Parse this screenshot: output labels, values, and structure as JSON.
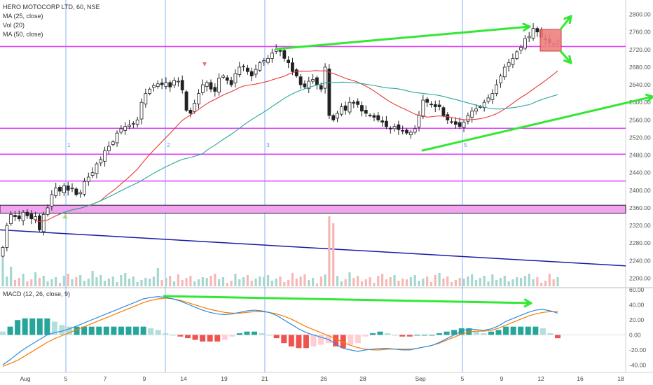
{
  "header": {
    "symbol_line": "HERO MOTOCORP LTD, 60, NSE",
    "studies": [
      "MA (25, close)",
      "Vol (20)",
      "MA (50, close)"
    ],
    "macd_label": "MACD (12, 26, close, 9)"
  },
  "colors": {
    "up": "#26a69a",
    "down": "#ef5350",
    "ma25": "#e53935",
    "ma50": "#26a69a",
    "support": "#e040fb",
    "support_zone": "#f2a3f2",
    "trend_blue": "#1a1aa6",
    "arrow_green": "#33e833",
    "target_box": "#f08080",
    "macd_line": "#2f8bdc",
    "signal_line": "#f57c00",
    "wave_line": "#8ab4f8"
  },
  "chart_data": [
    {
      "type": "candlestick",
      "panel": "price",
      "y_ticks": [
        2200,
        2240,
        2280,
        2320,
        2360,
        2400,
        2440,
        2480,
        2520,
        2560,
        2600,
        2640,
        2680,
        2720,
        2760,
        2800
      ],
      "y_tick_labels": [
        "2200.00",
        "2240.00",
        "2280.00",
        "2320.00",
        "2360.00",
        "2400.00",
        "2440.00",
        "2480.00",
        "2520.00",
        "2560.00",
        "2600.00",
        "2640.00",
        "2680.00",
        "2720.00",
        "2760.00",
        "2800.00"
      ],
      "ylim": [
        2180,
        2820
      ],
      "x_ticks": [
        "Aug",
        "5",
        "7",
        "9",
        "14",
        "19",
        "21",
        "26",
        "28",
        "Sep",
        "5",
        "9",
        "12",
        "16",
        "18"
      ],
      "wave_labels": [
        "1",
        "2",
        "3",
        "5"
      ],
      "horizontal_levels": [
        2727,
        2541,
        2482,
        2421
      ],
      "support_zone": [
        2348,
        2366
      ],
      "trendline": [
        2310,
        2228
      ],
      "bar_values_approx": [
        2270,
        2320,
        2345,
        2340,
        2335,
        2350,
        2342,
        2335,
        2340,
        2310,
        2345,
        2360,
        2390,
        2405,
        2398,
        2410,
        2400,
        2405,
        2390,
        2395,
        2420,
        2430,
        2440,
        2460,
        2470,
        2490,
        2500,
        2510,
        2530,
        2540,
        2545,
        2548,
        2552,
        2560,
        2600,
        2620,
        2630,
        2638,
        2642,
        2640,
        2645,
        2635,
        2650,
        2648,
        2628,
        2582,
        2575,
        2598,
        2620,
        2640,
        2645,
        2630,
        2625,
        2655,
        2660,
        2650,
        2640,
        2665,
        2680,
        2682,
        2670,
        2660,
        2675,
        2690,
        2695,
        2700,
        2712,
        2720,
        2716,
        2700,
        2690,
        2670,
        2660,
        2640,
        2635,
        2648,
        2652,
        2640,
        2630,
        2680,
        2570,
        2560,
        2575,
        2590,
        2582,
        2600,
        2598,
        2595,
        2580,
        2575,
        2570,
        2566,
        2560,
        2555,
        2545,
        2540,
        2545,
        2538,
        2535,
        2530,
        2532,
        2540,
        2570,
        2605,
        2600,
        2595,
        2590,
        2590,
        2570,
        2560,
        2556,
        2550,
        2545,
        2555,
        2570,
        2580,
        2585,
        2590,
        2600,
        2610,
        2620,
        2640,
        2660,
        2680,
        2690,
        2700,
        2715,
        2725,
        2745,
        2750,
        2768,
        2760,
        2748,
        2742,
        2735,
        2733,
        2740
      ]
    },
    {
      "type": "bar",
      "panel": "volume"
    },
    {
      "type": "line",
      "panel": "macd",
      "y_ticks": [
        60,
        40,
        20,
        0,
        -20,
        -40
      ],
      "y_tick_labels": [
        "60.00",
        "40.00",
        "20.00",
        "0.00",
        "-20.00",
        "-40.00"
      ],
      "ylim": [
        -50,
        62
      ],
      "macd_values_approx": [
        -40,
        -33,
        -25,
        -18,
        -12,
        -6,
        0,
        3,
        5,
        8,
        12,
        16,
        20,
        24,
        28,
        32,
        36,
        40,
        44,
        48,
        50,
        51,
        50,
        48,
        45,
        41,
        37,
        33,
        30,
        28,
        27,
        28,
        30,
        32,
        33,
        32,
        30,
        26,
        20,
        14,
        8,
        3,
        0,
        -3,
        -6,
        -12,
        -18,
        -20,
        -22,
        -20,
        -19,
        -18,
        -18,
        -19,
        -20,
        -20,
        -18,
        -16,
        -14,
        -10,
        -5,
        0,
        5,
        8,
        7,
        6,
        8,
        12,
        18,
        22,
        26,
        30,
        33,
        34,
        32,
        29
      ],
      "signal_values_approx": [
        -42,
        -38,
        -34,
        -28,
        -22,
        -16,
        -10,
        -5,
        -1,
        3,
        7,
        11,
        15,
        19,
        23,
        27,
        31,
        35,
        39,
        43,
        46,
        48,
        49,
        48,
        46,
        43,
        40,
        37,
        34,
        32,
        30,
        29,
        29,
        30,
        31,
        31,
        30,
        28,
        25,
        21,
        16,
        11,
        7,
        3,
        -1,
        -5,
        -10,
        -14,
        -17,
        -19,
        -20,
        -20,
        -19,
        -19,
        -19,
        -19,
        -18,
        -16,
        -14,
        -11,
        -7,
        -3,
        1,
        4,
        5,
        5,
        6,
        9,
        13,
        17,
        21,
        25,
        28,
        30,
        31,
        31
      ]
    }
  ]
}
